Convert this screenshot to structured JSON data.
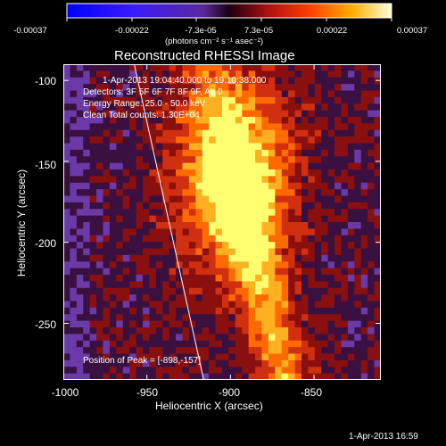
{
  "chart_data": {
    "type": "heatmap",
    "title": "Reconstructed RHESSI Image",
    "xlabel": "Heliocentric X (arcsec)",
    "ylabel": "Heliocentric Y (arcsec)",
    "xlim": [
      -1000,
      -810
    ],
    "ylim": [
      -285,
      -90
    ],
    "x_ticks": [
      "-1000",
      "-950",
      "-900",
      "-850"
    ],
    "y_ticks": [
      "-100",
      "-150",
      "-200",
      "-250"
    ],
    "colorbar": {
      "ticks": [
        "-0.00037",
        "-0.00022",
        "-7.3e-05",
        "7.3e-05",
        "0.00022",
        "0.00037"
      ],
      "label": "(photons cm⁻² s⁻¹ asec⁻²)",
      "range": [
        -0.00037,
        0.00037
      ]
    },
    "annotations": {
      "time_range": "1-Apr-2013 19:04:40.000 to 19:10:38.000",
      "detectors": "Detectors: 3F 5F 6F 7F 8F 9F, Att 0",
      "energy_range": "Energy Range: 25.0 - 50.0 keV",
      "method_counts": "Clean     Total counts: 1.30E+04",
      "peak": "Position of Peak = [-898,-157]"
    },
    "peak_position": [
      -898,
      -157
    ],
    "limb_line": {
      "x_start": -958,
      "y_start": -88,
      "x_end": -916,
      "y_end": -285
    }
  },
  "footer": {
    "timestamp": "1-Apr-2013 16:59"
  }
}
